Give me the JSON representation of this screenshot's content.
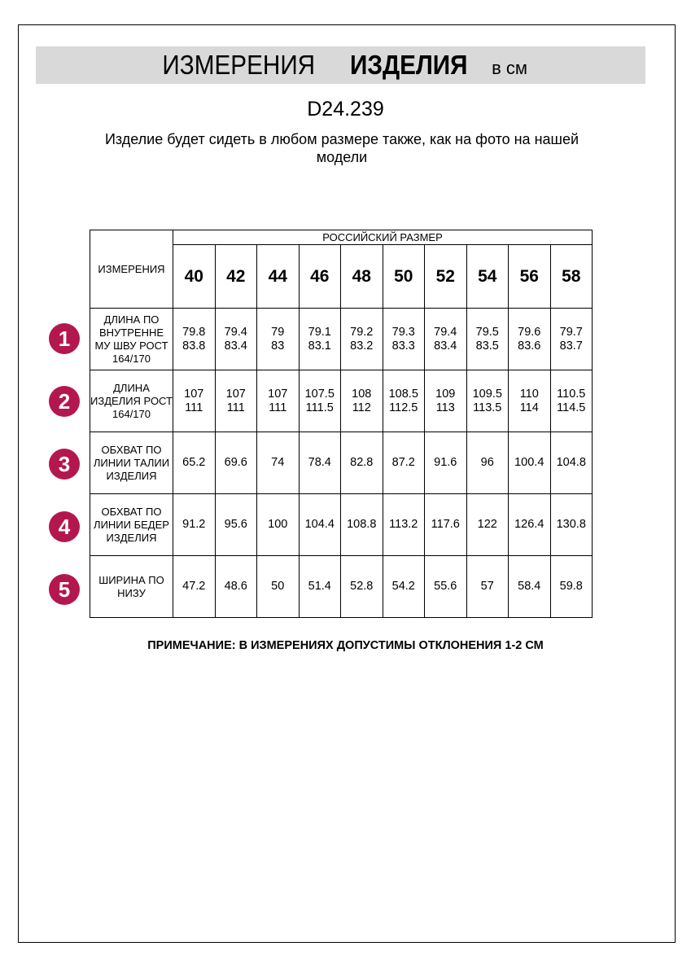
{
  "header": {
    "title_regular": "ИЗМЕРЕНИЯ",
    "title_bold": "ИЗДЕЛИЯ",
    "unit": "в см"
  },
  "article": "D24.239",
  "description": "Изделие будет сидеть в любом размере также, как на фото на нашей модели",
  "table": {
    "corner_label": "ИЗМЕРЕНИЯ",
    "group_label": "РОССИЙСКИЙ РАЗМЕР",
    "sizes": [
      "40",
      "42",
      "44",
      "46",
      "48",
      "50",
      "52",
      "54",
      "56",
      "58"
    ],
    "accent_color": "#b3174e",
    "rows": [
      {
        "num": "1",
        "label": "ДЛИНА ПО ВНУТРЕННЕ МУ ШВУ РОСТ 164/170",
        "values": [
          [
            "79.8",
            "83.8"
          ],
          [
            "79.4",
            "83.4"
          ],
          [
            "79",
            "83"
          ],
          [
            "79.1",
            "83.1"
          ],
          [
            "79.2",
            "83.2"
          ],
          [
            "79.3",
            "83.3"
          ],
          [
            "79.4",
            "83.4"
          ],
          [
            "79.5",
            "83.5"
          ],
          [
            "79.6",
            "83.6"
          ],
          [
            "79.7",
            "83.7"
          ]
        ]
      },
      {
        "num": "2",
        "label": "ДЛИНА ИЗДЕЛИЯ РОСТ 164/170",
        "values": [
          [
            "107",
            "111"
          ],
          [
            "107",
            "111"
          ],
          [
            "107",
            "111"
          ],
          [
            "107.5",
            "111.5"
          ],
          [
            "108",
            "112"
          ],
          [
            "108.5",
            "112.5"
          ],
          [
            "109",
            "113"
          ],
          [
            "109.5",
            "113.5"
          ],
          [
            "110",
            "114"
          ],
          [
            "110.5",
            "114.5"
          ]
        ]
      },
      {
        "num": "3",
        "label": "ОБХВАТ ПО ЛИНИИ ТАЛИИ ИЗДЕЛИЯ",
        "values": [
          [
            "65.2"
          ],
          [
            "69.6"
          ],
          [
            "74"
          ],
          [
            "78.4"
          ],
          [
            "82.8"
          ],
          [
            "87.2"
          ],
          [
            "91.6"
          ],
          [
            "96"
          ],
          [
            "100.4"
          ],
          [
            "104.8"
          ]
        ]
      },
      {
        "num": "4",
        "label": "ОБХВАТ ПО ЛИНИИ БЕДЕР ИЗДЕЛИЯ",
        "values": [
          [
            "91.2"
          ],
          [
            "95.6"
          ],
          [
            "100"
          ],
          [
            "104.4"
          ],
          [
            "108.8"
          ],
          [
            "113.2"
          ],
          [
            "117.6"
          ],
          [
            "122"
          ],
          [
            "126.4"
          ],
          [
            "130.8"
          ]
        ]
      },
      {
        "num": "5",
        "label": "ШИРИНА ПО НИЗУ",
        "values": [
          [
            "47.2"
          ],
          [
            "48.6"
          ],
          [
            "50"
          ],
          [
            "51.4"
          ],
          [
            "52.8"
          ],
          [
            "54.2"
          ],
          [
            "55.6"
          ],
          [
            "57"
          ],
          [
            "58.4"
          ],
          [
            "59.8"
          ]
        ]
      }
    ]
  },
  "note": "ПРИМЕЧАНИЕ: В ИЗМЕРЕНИЯХ ДОПУСТИМЫ ОТКЛОНЕНИЯ 1-2 СМ"
}
